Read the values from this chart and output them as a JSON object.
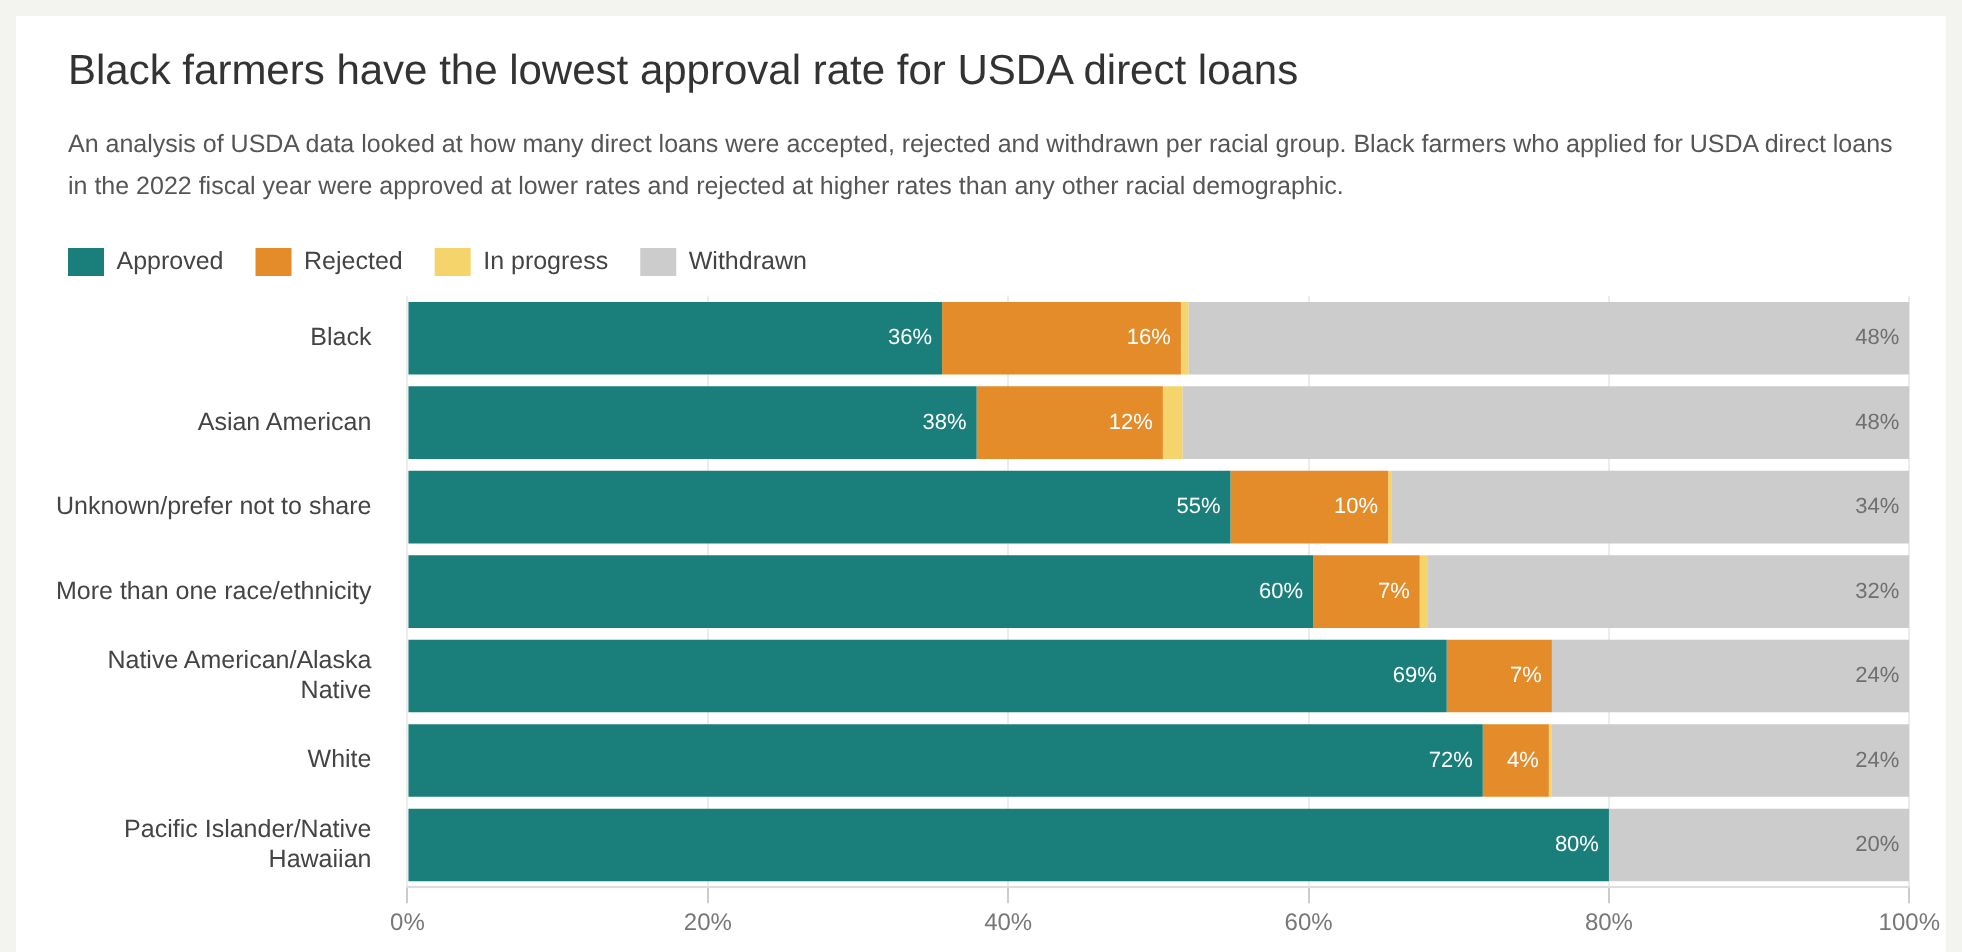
{
  "chart_data": {
    "type": "bar",
    "orientation": "horizontal",
    "stacked": true,
    "title": "Black farmers have the lowest approval rate for USDA direct loans",
    "subtitle": "An analysis of USDA data looked at how many direct loans were accepted, rejected and withdrawn per racial group. Black farmers who applied for USDA direct loans in the 2022 fiscal year were approved at lower rates and rejected at higher rates than any other racial demographic.",
    "categories": [
      "Black",
      "Asian American",
      "Unknown/prefer not to share",
      "More than one race/ethnicity",
      "Native American/Alaska Native",
      "White",
      "Pacific Islander/Native Hawaiian"
    ],
    "series": [
      {
        "name": "Approved",
        "color": "#1a7f7a",
        "values": [
          35.6,
          37.9,
          54.8,
          60.3,
          69.2,
          71.6,
          80.0
        ],
        "value_labels": [
          "36%",
          "38%",
          "55%",
          "60%",
          "69%",
          "72%",
          "80%"
        ]
      },
      {
        "name": "Rejected",
        "color": "#e48c2a",
        "values": [
          15.9,
          12.4,
          10.5,
          7.1,
          7.0,
          4.4,
          0
        ],
        "value_labels": [
          "16%",
          "12%",
          "10%",
          "7%",
          "7%",
          "4%",
          null
        ]
      },
      {
        "name": "In progress",
        "color": "#f5d46b",
        "values": [
          0.5,
          1.3,
          0.2,
          0.5,
          0,
          0.2,
          0
        ],
        "value_labels": [
          null,
          null,
          null,
          null,
          null,
          null,
          null
        ]
      },
      {
        "name": "Withdrawn",
        "color": "#cccccc",
        "values": [
          48.0,
          48.4,
          34.5,
          32.1,
          23.8,
          23.8,
          20.0
        ],
        "value_labels": [
          "48%",
          "48%",
          "34%",
          "32%",
          "24%",
          "24%",
          "20%"
        ]
      }
    ],
    "xlim": [
      0,
      100
    ],
    "xticks": [
      {
        "value": 0,
        "label": "0%"
      },
      {
        "value": 20,
        "label": "20%"
      },
      {
        "value": 40,
        "label": "40%"
      },
      {
        "value": 60,
        "label": "60%"
      },
      {
        "value": 80,
        "label": "80%"
      },
      {
        "value": 100,
        "label": "100%"
      }
    ],
    "grid": "x",
    "legend": "top left"
  }
}
